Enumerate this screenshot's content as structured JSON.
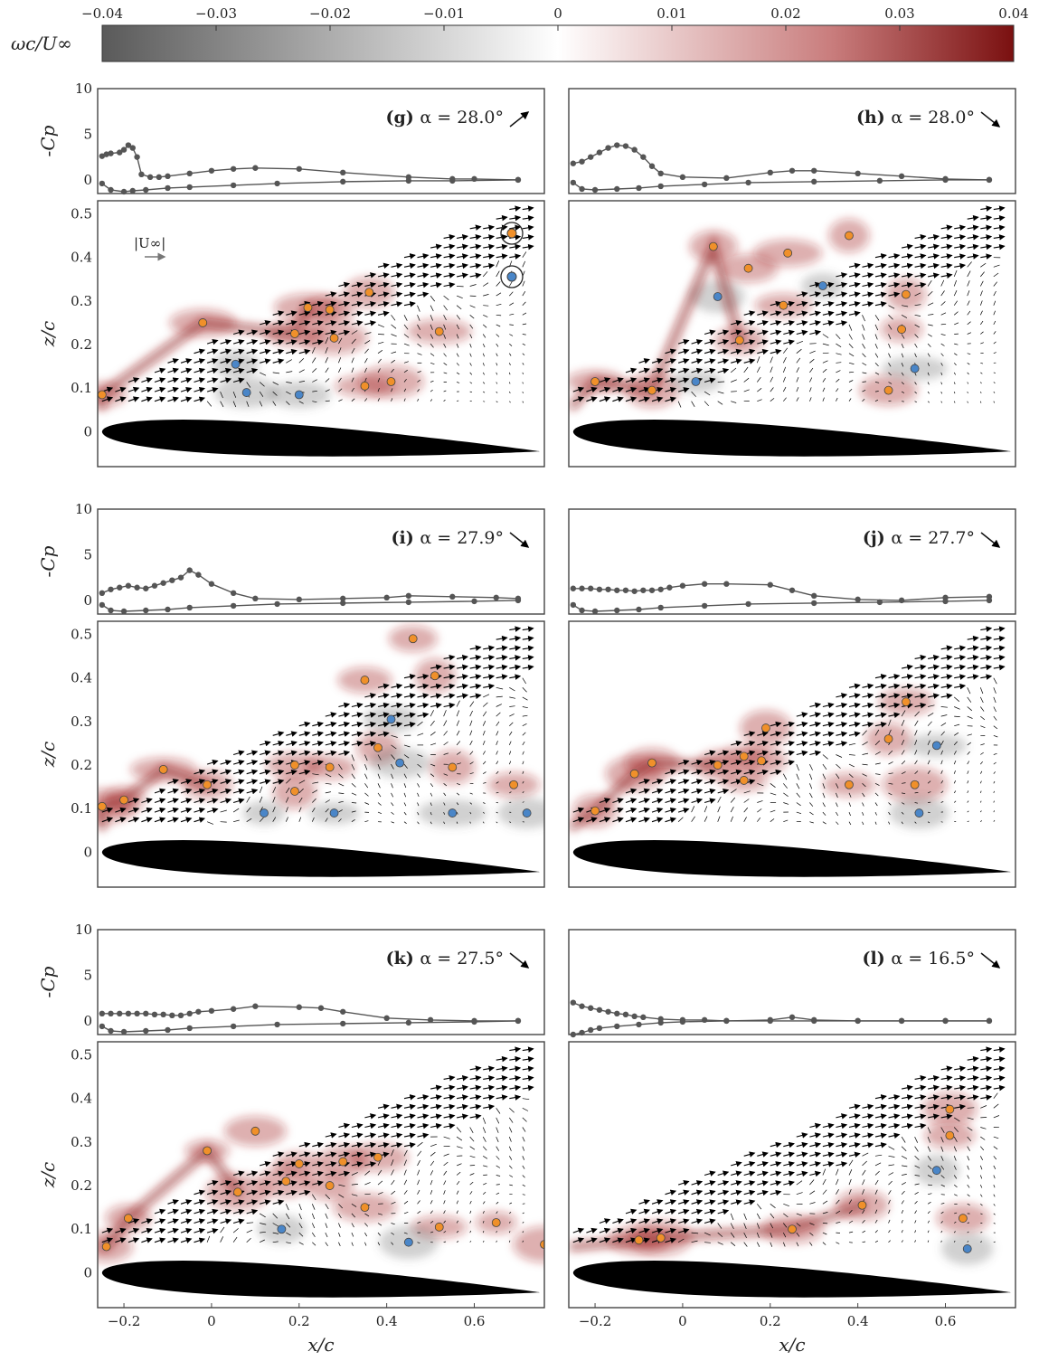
{
  "colorbar": {
    "label": "ωc/U∞",
    "ticks": [
      "−0.04",
      "−0.03",
      "−0.02",
      "−0.01",
      "0",
      "0.01",
      "0.02",
      "0.03",
      "0.04"
    ],
    "range": [
      -0.04,
      0.04
    ],
    "colors": {
      "negative": "#5a5a5a",
      "zero": "#ffffff",
      "positive": "#7a1010"
    }
  },
  "axes": {
    "cp_label": "-Cp",
    "z_label": "z/c",
    "x_label": "x/c",
    "cp_ticks": [
      "10",
      "5",
      "0"
    ],
    "cp_ylim": [
      -1.5,
      10
    ],
    "z_ticks": [
      "0.5",
      "0.4",
      "0.3",
      "0.2",
      "0.1",
      "0"
    ],
    "z_ylim": [
      -0.08,
      0.53
    ],
    "x_ticks": [
      "−0.2",
      "0",
      "0.2",
      "0.4",
      "0.6"
    ],
    "xlim": [
      -0.26,
      0.76
    ]
  },
  "inset": {
    "freestream_label": "|U∞|"
  },
  "colors": {
    "vortex_cw": "#f0902a",
    "vortex_ccw": "#4a86c8",
    "airfoil": "#000000",
    "cp_line": "#555555"
  },
  "chart_data": [
    {
      "type": "line",
      "panel": "g",
      "alpha_label": "α = 28.0°",
      "arrow": "up",
      "cp_upper": {
        "x": [
          -0.25,
          -0.24,
          -0.23,
          -0.21,
          -0.2,
          -0.19,
          -0.18,
          -0.17,
          -0.16,
          -0.14,
          -0.12,
          -0.1,
          -0.05,
          0,
          0.05,
          0.1,
          0.2,
          0.3,
          0.45,
          0.55,
          0.6,
          0.7
        ],
        "y": [
          2.6,
          2.8,
          2.9,
          3.0,
          3.3,
          3.8,
          3.5,
          2.5,
          0.6,
          0.3,
          0.3,
          0.4,
          0.7,
          1.0,
          1.2,
          1.3,
          1.2,
          0.8,
          0.3,
          0.1,
          0.1,
          0.0
        ]
      },
      "cp_lower": {
        "x": [
          -0.25,
          -0.23,
          -0.2,
          -0.18,
          -0.15,
          -0.1,
          -0.05,
          0.05,
          0.15,
          0.3,
          0.45,
          0.55,
          0.7
        ],
        "y": [
          -0.4,
          -1.1,
          -1.3,
          -1.2,
          -1.1,
          -0.9,
          -0.8,
          -0.6,
          -0.4,
          -0.2,
          -0.1,
          -0.1,
          0.0
        ]
      },
      "vortices": [
        {
          "x": -0.25,
          "z": 0.085,
          "sense": "cw"
        },
        {
          "x": -0.02,
          "z": 0.25,
          "sense": "cw"
        },
        {
          "x": 0.19,
          "z": 0.225,
          "sense": "cw"
        },
        {
          "x": 0.22,
          "z": 0.285,
          "sense": "cw"
        },
        {
          "x": 0.27,
          "z": 0.28,
          "sense": "cw"
        },
        {
          "x": 0.28,
          "z": 0.215,
          "sense": "cw"
        },
        {
          "x": 0.36,
          "z": 0.32,
          "sense": "cw"
        },
        {
          "x": 0.35,
          "z": 0.105,
          "sense": "cw"
        },
        {
          "x": 0.41,
          "z": 0.115,
          "sense": "cw"
        },
        {
          "x": 0.52,
          "z": 0.23,
          "sense": "cw"
        },
        {
          "x": 0.055,
          "z": 0.155,
          "sense": "ccw"
        },
        {
          "x": 0.08,
          "z": 0.09,
          "sense": "ccw"
        },
        {
          "x": 0.2,
          "z": 0.085,
          "sense": "ccw"
        }
      ]
    },
    {
      "type": "line",
      "panel": "h",
      "alpha_label": "α = 28.0°",
      "arrow": "down",
      "cp_upper": {
        "x": [
          -0.25,
          -0.23,
          -0.21,
          -0.19,
          -0.17,
          -0.15,
          -0.13,
          -0.11,
          -0.09,
          -0.07,
          -0.05,
          0.0,
          0.1,
          0.2,
          0.25,
          0.3,
          0.4,
          0.5,
          0.6,
          0.7
        ],
        "y": [
          1.8,
          2.0,
          2.5,
          3.0,
          3.5,
          3.8,
          3.7,
          3.3,
          2.5,
          1.5,
          0.7,
          0.3,
          0.2,
          0.8,
          1.0,
          1.0,
          0.7,
          0.4,
          0.1,
          0.0
        ]
      },
      "cp_lower": {
        "x": [
          -0.25,
          -0.23,
          -0.2,
          -0.15,
          -0.1,
          -0.05,
          0.05,
          0.15,
          0.3,
          0.45,
          0.6,
          0.7
        ],
        "y": [
          -0.3,
          -1.0,
          -1.1,
          -1.0,
          -0.9,
          -0.7,
          -0.5,
          -0.3,
          -0.2,
          -0.1,
          0.0,
          0.0
        ]
      },
      "vortices": [
        {
          "x": -0.2,
          "z": 0.115,
          "sense": "cw"
        },
        {
          "x": -0.07,
          "z": 0.095,
          "sense": "cw"
        },
        {
          "x": 0.07,
          "z": 0.425,
          "sense": "cw"
        },
        {
          "x": 0.15,
          "z": 0.375,
          "sense": "cw"
        },
        {
          "x": 0.24,
          "z": 0.41,
          "sense": "cw"
        },
        {
          "x": 0.38,
          "z": 0.45,
          "sense": "cw"
        },
        {
          "x": 0.13,
          "z": 0.21,
          "sense": "cw"
        },
        {
          "x": 0.23,
          "z": 0.29,
          "sense": "cw"
        },
        {
          "x": 0.51,
          "z": 0.315,
          "sense": "cw"
        },
        {
          "x": 0.5,
          "z": 0.235,
          "sense": "cw"
        },
        {
          "x": 0.47,
          "z": 0.095,
          "sense": "cw"
        },
        {
          "x": 0.08,
          "z": 0.31,
          "sense": "ccw"
        },
        {
          "x": 0.32,
          "z": 0.335,
          "sense": "ccw"
        },
        {
          "x": 0.03,
          "z": 0.115,
          "sense": "ccw"
        },
        {
          "x": 0.53,
          "z": 0.145,
          "sense": "ccw"
        }
      ]
    },
    {
      "type": "line",
      "panel": "i",
      "alpha_label": "α = 27.9°",
      "arrow": "down",
      "cp_upper": {
        "x": [
          -0.25,
          -0.23,
          -0.21,
          -0.19,
          -0.17,
          -0.15,
          -0.13,
          -0.11,
          -0.09,
          -0.07,
          -0.05,
          -0.03,
          0.0,
          0.05,
          0.1,
          0.2,
          0.3,
          0.4,
          0.45,
          0.55,
          0.65,
          0.7
        ],
        "y": [
          0.8,
          1.2,
          1.4,
          1.6,
          1.4,
          1.3,
          1.6,
          1.9,
          2.2,
          2.5,
          3.3,
          2.8,
          1.8,
          0.8,
          0.2,
          0.1,
          0.2,
          0.3,
          0.5,
          0.4,
          0.3,
          0.2
        ]
      },
      "cp_lower": {
        "x": [
          -0.25,
          -0.23,
          -0.2,
          -0.15,
          -0.1,
          -0.05,
          0.05,
          0.15,
          0.3,
          0.45,
          0.6,
          0.7
        ],
        "y": [
          -0.5,
          -1.1,
          -1.2,
          -1.1,
          -1.0,
          -0.8,
          -0.6,
          -0.4,
          -0.3,
          -0.2,
          -0.1,
          0.0
        ]
      },
      "vortices": [
        {
          "x": -0.25,
          "z": 0.105,
          "sense": "cw"
        },
        {
          "x": -0.2,
          "z": 0.12,
          "sense": "cw"
        },
        {
          "x": -0.11,
          "z": 0.19,
          "sense": "cw"
        },
        {
          "x": -0.01,
          "z": 0.155,
          "sense": "cw"
        },
        {
          "x": 0.19,
          "z": 0.2,
          "sense": "cw"
        },
        {
          "x": 0.19,
          "z": 0.14,
          "sense": "cw"
        },
        {
          "x": 0.27,
          "z": 0.195,
          "sense": "cw"
        },
        {
          "x": 0.35,
          "z": 0.395,
          "sense": "cw"
        },
        {
          "x": 0.38,
          "z": 0.24,
          "sense": "cw"
        },
        {
          "x": 0.46,
          "z": 0.49,
          "sense": "cw"
        },
        {
          "x": 0.51,
          "z": 0.405,
          "sense": "cw"
        },
        {
          "x": 0.55,
          "z": 0.195,
          "sense": "cw"
        },
        {
          "x": 0.69,
          "z": 0.155,
          "sense": "cw"
        },
        {
          "x": 0.41,
          "z": 0.305,
          "sense": "ccw"
        },
        {
          "x": 0.43,
          "z": 0.205,
          "sense": "ccw"
        },
        {
          "x": 0.12,
          "z": 0.09,
          "sense": "ccw"
        },
        {
          "x": 0.28,
          "z": 0.09,
          "sense": "ccw"
        },
        {
          "x": 0.55,
          "z": 0.09,
          "sense": "ccw"
        },
        {
          "x": 0.72,
          "z": 0.09,
          "sense": "ccw"
        }
      ]
    },
    {
      "type": "line",
      "panel": "j",
      "alpha_label": "α = 27.7°",
      "arrow": "down",
      "cp_upper": {
        "x": [
          -0.25,
          -0.23,
          -0.21,
          -0.19,
          -0.17,
          -0.15,
          -0.13,
          -0.11,
          -0.09,
          -0.07,
          -0.05,
          -0.03,
          0.0,
          0.05,
          0.1,
          0.2,
          0.25,
          0.3,
          0.4,
          0.5,
          0.6,
          0.7
        ],
        "y": [
          1.3,
          1.3,
          1.3,
          1.2,
          1.2,
          1.1,
          1.1,
          1.0,
          1.1,
          1.1,
          1.2,
          1.4,
          1.6,
          1.8,
          1.8,
          1.7,
          1.1,
          0.5,
          0.1,
          0.0,
          0.3,
          0.4
        ]
      },
      "cp_lower": {
        "x": [
          -0.25,
          -0.23,
          -0.2,
          -0.15,
          -0.1,
          -0.05,
          0.05,
          0.15,
          0.3,
          0.45,
          0.6,
          0.7
        ],
        "y": [
          -0.5,
          -1.1,
          -1.2,
          -1.1,
          -1.0,
          -0.8,
          -0.6,
          -0.4,
          -0.3,
          -0.2,
          -0.1,
          0.0
        ]
      },
      "vortices": [
        {
          "x": -0.2,
          "z": 0.095,
          "sense": "cw"
        },
        {
          "x": -0.11,
          "z": 0.18,
          "sense": "cw"
        },
        {
          "x": -0.07,
          "z": 0.205,
          "sense": "cw"
        },
        {
          "x": 0.08,
          "z": 0.2,
          "sense": "cw"
        },
        {
          "x": 0.14,
          "z": 0.22,
          "sense": "cw"
        },
        {
          "x": 0.14,
          "z": 0.165,
          "sense": "cw"
        },
        {
          "x": 0.19,
          "z": 0.285,
          "sense": "cw"
        },
        {
          "x": 0.18,
          "z": 0.21,
          "sense": "cw"
        },
        {
          "x": 0.47,
          "z": 0.26,
          "sense": "cw"
        },
        {
          "x": 0.51,
          "z": 0.345,
          "sense": "cw"
        },
        {
          "x": 0.38,
          "z": 0.155,
          "sense": "cw"
        },
        {
          "x": 0.53,
          "z": 0.155,
          "sense": "cw"
        },
        {
          "x": 0.58,
          "z": 0.245,
          "sense": "ccw"
        },
        {
          "x": 0.54,
          "z": 0.09,
          "sense": "ccw"
        }
      ]
    },
    {
      "type": "line",
      "panel": "k",
      "alpha_label": "α = 27.5°",
      "arrow": "down",
      "cp_upper": {
        "x": [
          -0.25,
          -0.23,
          -0.21,
          -0.19,
          -0.17,
          -0.15,
          -0.13,
          -0.11,
          -0.09,
          -0.07,
          -0.05,
          -0.03,
          0.0,
          0.05,
          0.1,
          0.2,
          0.25,
          0.3,
          0.4,
          0.5,
          0.6,
          0.7
        ],
        "y": [
          0.8,
          0.8,
          0.8,
          0.8,
          0.8,
          0.8,
          0.7,
          0.7,
          0.6,
          0.6,
          0.8,
          1.0,
          1.1,
          1.3,
          1.6,
          1.5,
          1.4,
          1.0,
          0.3,
          0.1,
          0.0,
          0.0
        ]
      },
      "cp_lower": {
        "x": [
          -0.25,
          -0.23,
          -0.2,
          -0.15,
          -0.1,
          -0.05,
          0.05,
          0.15,
          0.3,
          0.45,
          0.6,
          0.7
        ],
        "y": [
          -0.6,
          -1.1,
          -1.2,
          -1.1,
          -1.0,
          -0.8,
          -0.6,
          -0.4,
          -0.3,
          -0.2,
          -0.1,
          0.0
        ]
      },
      "vortices": [
        {
          "x": -0.24,
          "z": 0.06,
          "sense": "cw"
        },
        {
          "x": -0.19,
          "z": 0.125,
          "sense": "cw"
        },
        {
          "x": -0.01,
          "z": 0.28,
          "sense": "cw"
        },
        {
          "x": 0.1,
          "z": 0.325,
          "sense": "cw"
        },
        {
          "x": 0.06,
          "z": 0.185,
          "sense": "cw"
        },
        {
          "x": 0.2,
          "z": 0.25,
          "sense": "cw"
        },
        {
          "x": 0.17,
          "z": 0.21,
          "sense": "cw"
        },
        {
          "x": 0.27,
          "z": 0.2,
          "sense": "cw"
        },
        {
          "x": 0.3,
          "z": 0.255,
          "sense": "cw"
        },
        {
          "x": 0.38,
          "z": 0.265,
          "sense": "cw"
        },
        {
          "x": 0.35,
          "z": 0.15,
          "sense": "cw"
        },
        {
          "x": 0.52,
          "z": 0.105,
          "sense": "cw"
        },
        {
          "x": 0.65,
          "z": 0.115,
          "sense": "cw"
        },
        {
          "x": 0.76,
          "z": 0.065,
          "sense": "cw"
        },
        {
          "x": 0.16,
          "z": 0.1,
          "sense": "ccw"
        },
        {
          "x": 0.45,
          "z": 0.07,
          "sense": "ccw"
        }
      ]
    },
    {
      "type": "line",
      "panel": "l",
      "alpha_label": "α = 16.5°",
      "arrow": "down",
      "cp_upper": {
        "x": [
          -0.25,
          -0.23,
          -0.21,
          -0.19,
          -0.17,
          -0.15,
          -0.13,
          -0.11,
          -0.09,
          -0.05,
          0.0,
          0.05,
          0.1,
          0.2,
          0.3,
          0.4,
          0.5,
          0.6,
          0.7
        ],
        "y": [
          2.0,
          1.6,
          1.4,
          1.2,
          1.0,
          0.8,
          0.7,
          0.5,
          0.4,
          0.2,
          0.1,
          0.1,
          0.0,
          0.0,
          0.0,
          0.0,
          0.0,
          0.0,
          0.0
        ]
      },
      "cp_lower": {
        "x": [
          -0.25,
          -0.23,
          -0.21,
          -0.19,
          -0.15,
          -0.1,
          -0.05,
          0.0,
          0.1,
          0.2,
          0.25,
          0.3,
          0.4,
          0.5,
          0.6,
          0.7
        ],
        "y": [
          -1.5,
          -1.3,
          -1.0,
          -0.8,
          -0.6,
          -0.4,
          -0.2,
          -0.1,
          0.0,
          0.1,
          0.4,
          0.1,
          0.0,
          0.0,
          0.0,
          0.0
        ]
      },
      "vortices": [
        {
          "x": -0.1,
          "z": 0.075,
          "sense": "cw"
        },
        {
          "x": -0.05,
          "z": 0.08,
          "sense": "cw"
        },
        {
          "x": 0.25,
          "z": 0.1,
          "sense": "cw"
        },
        {
          "x": 0.41,
          "z": 0.155,
          "sense": "cw"
        },
        {
          "x": 0.61,
          "z": 0.375,
          "sense": "cw"
        },
        {
          "x": 0.61,
          "z": 0.315,
          "sense": "cw"
        },
        {
          "x": 0.64,
          "z": 0.125,
          "sense": "cw"
        },
        {
          "x": 0.58,
          "z": 0.235,
          "sense": "ccw"
        },
        {
          "x": 0.65,
          "z": 0.055,
          "sense": "ccw"
        }
      ]
    }
  ]
}
